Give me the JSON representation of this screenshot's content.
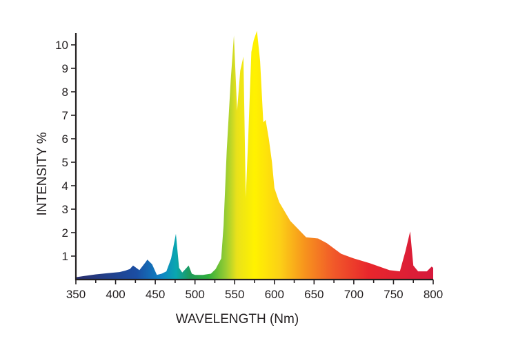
{
  "chart_data": {
    "type": "area",
    "title": "",
    "xlabel": "WAVELENGTH (Nm)",
    "ylabel": "INTENSITY %",
    "xlim": [
      350,
      800
    ],
    "ylim": [
      0,
      10.5
    ],
    "grid": false,
    "legend": "none",
    "x_ticks": [
      "350",
      "400",
      "450",
      "500",
      "550",
      "600",
      "650",
      "700",
      "750",
      "800"
    ],
    "y_ticks": [
      "1",
      "2",
      "3",
      "4",
      "5",
      "6",
      "7",
      "8",
      "9",
      "10"
    ],
    "series": [
      {
        "x": [
          350,
          360,
          375,
          390,
          405,
          412,
          418,
          422,
          430,
          438,
          440,
          446,
          452,
          458,
          464,
          470,
          476,
          480,
          484,
          488,
          492,
          496,
          500,
          510,
          520,
          526,
          533,
          536,
          540,
          545,
          549,
          553,
          557,
          561,
          564,
          567,
          571,
          574,
          578,
          582,
          586,
          589,
          593,
          597,
          600,
          606,
          620,
          640,
          655,
          666,
          684,
          700,
          720,
          745,
          758,
          765,
          771,
          775,
          781,
          792,
          798,
          800
        ],
        "values": [
          0.1,
          0.15,
          0.22,
          0.27,
          0.32,
          0.38,
          0.45,
          0.6,
          0.4,
          0.75,
          0.85,
          0.65,
          0.2,
          0.25,
          0.35,
          0.9,
          1.95,
          0.5,
          0.3,
          0.45,
          0.6,
          0.25,
          0.2,
          0.2,
          0.25,
          0.45,
          0.9,
          2.3,
          5.5,
          8.5,
          10.4,
          7.2,
          8.9,
          9.5,
          3.5,
          6.0,
          9.7,
          10.2,
          10.6,
          9.3,
          6.7,
          6.8,
          6.0,
          5.0,
          3.9,
          3.3,
          2.5,
          1.8,
          1.75,
          1.55,
          1.1,
          0.9,
          0.7,
          0.4,
          0.35,
          1.2,
          2.05,
          0.6,
          0.35,
          0.35,
          0.55,
          0.5
        ]
      }
    ],
    "colors": {
      "axis": "#231f20",
      "spectrum": [
        "#2a2f6e",
        "#1b4ea3",
        "#0e84c4",
        "#0aa6b0",
        "#1e9a58",
        "#2fae3c",
        "#9acd32",
        "#e9e11b",
        "#fff200",
        "#fcd116",
        "#f7941d",
        "#f15a29",
        "#e8262c",
        "#d61a3c"
      ]
    }
  }
}
